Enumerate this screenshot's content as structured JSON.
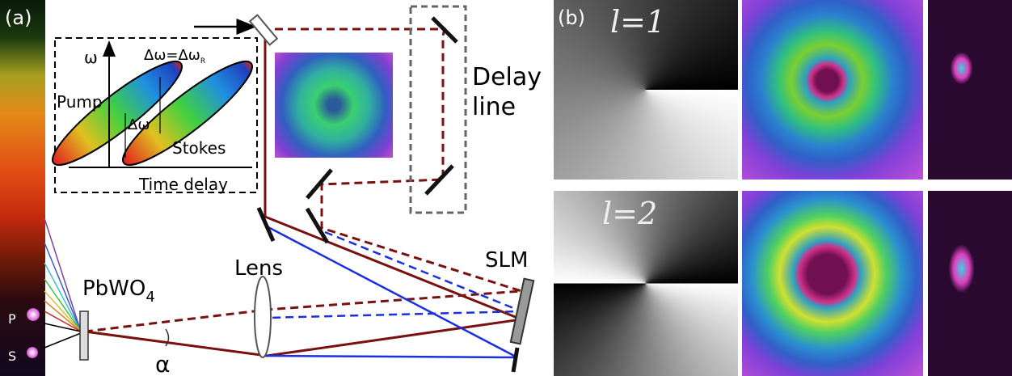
{
  "panel_a": {
    "label": "(a)",
    "inset": {
      "y_axis": "ω",
      "equation": {
        "text": "Δω=Δω",
        "subscript": "R"
      },
      "pump": "Pump",
      "delta": "Δω",
      "stokes": "Stokes",
      "x_axis": "Time delay"
    },
    "delay_line": [
      "Delay",
      "line"
    ],
    "crystal": {
      "text": "PbWO",
      "subscript": "4"
    },
    "lens": "Lens",
    "slm": "SLM",
    "spot_p": "P",
    "spot_s": "S",
    "angle": "α"
  },
  "panel_b": {
    "label": "(b)",
    "rows": [
      "l=1",
      "l=2"
    ]
  }
}
